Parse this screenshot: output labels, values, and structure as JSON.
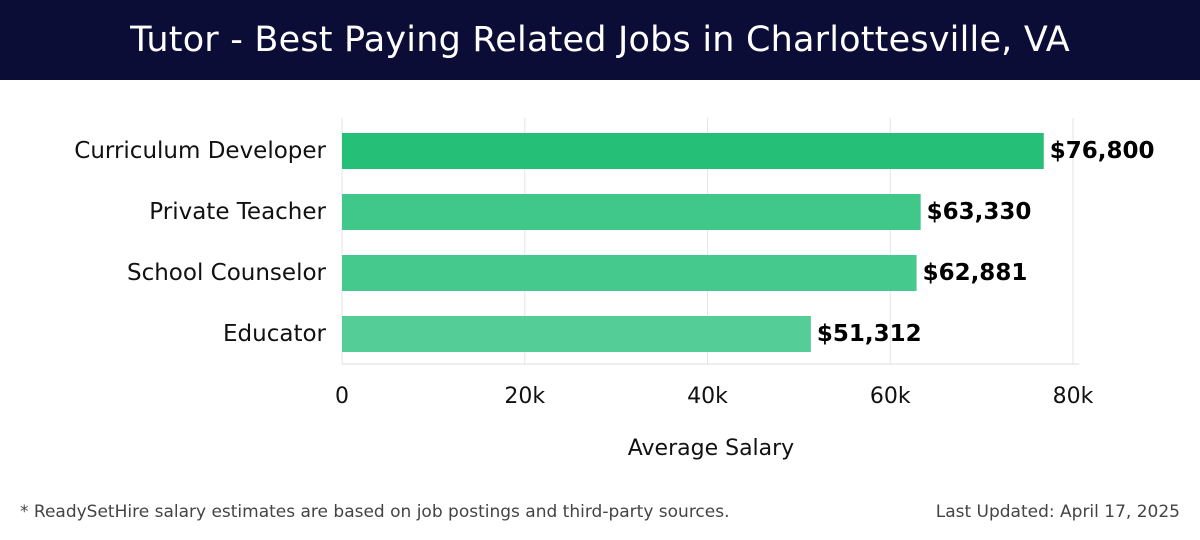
{
  "header": {
    "title": "Tutor - Best Paying Related Jobs in Charlottesville, VA"
  },
  "footer": {
    "note": "* ReadySetHire salary estimates are based on job postings and third-party sources.",
    "updated": "Last Updated: April 17, 2025"
  },
  "chart_data": {
    "type": "bar",
    "orientation": "horizontal",
    "title": "Tutor - Best Paying Related Jobs in Charlottesville, VA",
    "xlabel": "Average Salary",
    "ylabel": "",
    "categories": [
      "Curriculum Developer",
      "Private Teacher",
      "School Counselor",
      "Educator"
    ],
    "values": [
      76800,
      63330,
      62881,
      51312
    ],
    "value_labels": [
      "$76,800",
      "$63,330",
      "$62,881",
      "$51,312"
    ],
    "xlim": [
      0,
      80000
    ],
    "xticks": [
      0,
      20000,
      40000,
      60000,
      80000
    ],
    "xtick_labels": [
      "0",
      "20k",
      "40k",
      "60k",
      "80k"
    ],
    "grid": true,
    "colors": [
      "#26bf78",
      "#3fc88a",
      "#45c98c",
      "#55cd96"
    ]
  }
}
